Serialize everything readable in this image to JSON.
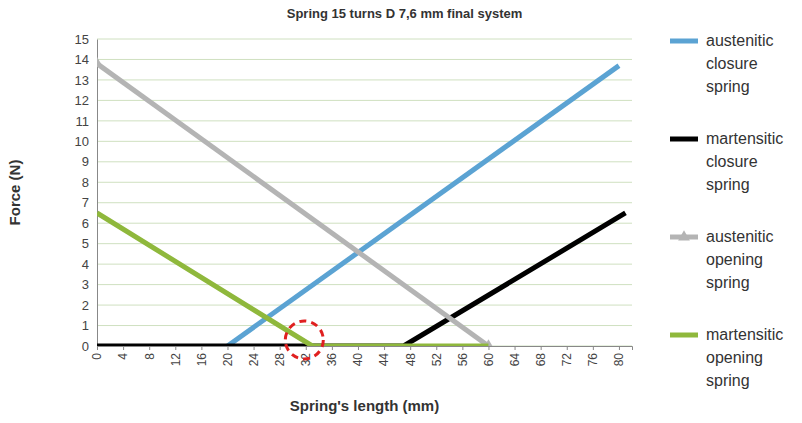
{
  "chart_data": {
    "type": "line",
    "title": "Spring 15 turns D 7,6 mm final system",
    "x_label": "Spring's length (mm)",
    "y_label": "Force (N)",
    "xlim": [
      0,
      82
    ],
    "xticks": [
      0,
      4,
      8,
      12,
      16,
      20,
      24,
      28,
      32,
      36,
      40,
      44,
      48,
      52,
      56,
      60,
      64,
      68,
      72,
      76,
      80
    ],
    "ylim": [
      0,
      15
    ],
    "yticks": [
      0,
      1,
      2,
      3,
      4,
      5,
      6,
      7,
      8,
      9,
      10,
      11,
      12,
      13,
      14,
      15
    ],
    "grid": true,
    "legend": "right",
    "series": [
      {
        "name": "austenitic closure spring",
        "color": "#5ba3d3",
        "x": [
          20,
          80
        ],
        "values": [
          0,
          13.7
        ]
      },
      {
        "name": "martensitic closure spring",
        "color": "#000000",
        "x": [
          0,
          47,
          81
        ],
        "values": [
          0,
          0,
          6.5
        ]
      },
      {
        "name": "austenitic opening spring",
        "color": "#b4b4b4",
        "marker": "triangle",
        "x": [
          0,
          60
        ],
        "values": [
          13.8,
          0
        ]
      },
      {
        "name": "martensitic opening spring",
        "color": "#8fb83c",
        "x": [
          0,
          33,
          60
        ],
        "values": [
          6.5,
          0,
          0
        ]
      }
    ]
  }
}
